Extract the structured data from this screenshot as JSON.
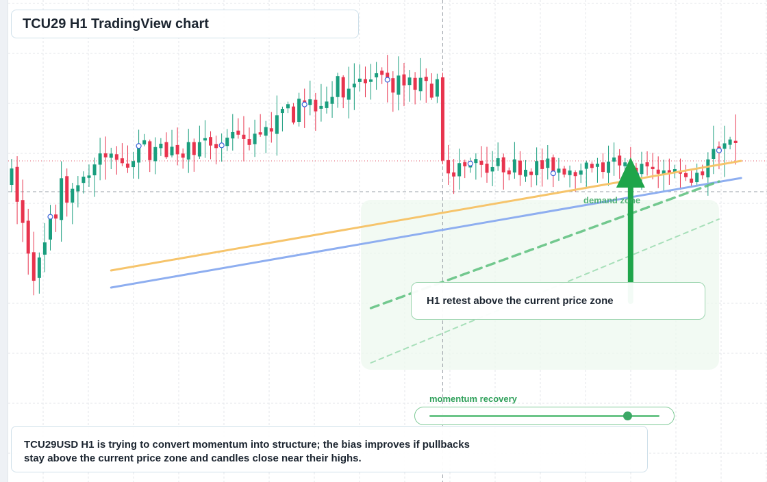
{
  "title": "TCU29 H1 TradingView chart",
  "callout": "H1 retest above the current price zone",
  "zone_label": "demand zone",
  "momentum": {
    "label": "momentum recovery",
    "level": 0.86
  },
  "summary": "TCU29USD H1 is trying to convert momentum into structure; the bias improves if pullbacks stay above the current price zone and candles close near their highs.",
  "colors": {
    "up": "#1a9e7e",
    "down": "#e8344e",
    "trend_orange": "#f6c46b",
    "trend_blue": "#8eaef0",
    "accent_green": "#1fa54a",
    "zone_fill": "#eef8ef",
    "grid": "#e3e6ea",
    "marker": "#3b63d8"
  },
  "chart_data": {
    "type": "candlestick",
    "symbol": "TCU29USD",
    "timeframe": "H1",
    "candle_count": 132,
    "price_range": [
      0,
      100
    ],
    "grid": true,
    "segments": [
      {
        "from": 0,
        "to": 5,
        "start": 55,
        "end": 30,
        "vol": 5
      },
      {
        "from": 5,
        "to": 10,
        "start": 30,
        "end": 52,
        "vol": 5
      },
      {
        "from": 10,
        "to": 18,
        "start": 52,
        "end": 62,
        "vol": 4
      },
      {
        "from": 18,
        "to": 42,
        "start": 62,
        "end": 67,
        "vol": 3
      },
      {
        "from": 42,
        "to": 62,
        "start": 67,
        "end": 84,
        "vol": 4
      },
      {
        "from": 62,
        "to": 78,
        "start": 84,
        "end": 82,
        "vol": 4
      },
      {
        "from": 78,
        "to": 126,
        "start": 60,
        "end": 58,
        "vol": 3
      },
      {
        "from": 126,
        "to": 132,
        "start": 62,
        "end": 63,
        "vol": 5
      }
    ],
    "markers_at": [
      7,
      23,
      38,
      53,
      68,
      83,
      98,
      113,
      128
    ],
    "reference_levels": [
      {
        "value": 61,
        "style": "dotted-red"
      },
      {
        "value": 52,
        "style": "dashed-gray"
      }
    ],
    "trendlines": [
      {
        "name": "",
        "style": "solid-orange",
        "from_index": 18,
        "from_value": 29,
        "to_index": 132,
        "to_value": 61
      },
      {
        "name": "",
        "style": "solid-blue",
        "from_index": 18,
        "from_value": 24,
        "to_index": 132,
        "to_value": 56
      },
      {
        "name": "",
        "style": "dashed-green",
        "from_index": 65,
        "from_value": 18,
        "to_index": 128,
        "to_value": 55
      },
      {
        "name": "",
        "style": "faint-dashed-green",
        "from_index": 65,
        "from_value": 2,
        "to_index": 128,
        "to_value": 44
      }
    ],
    "arrow": {
      "direction": "up",
      "at_index": 112,
      "from_value": 20,
      "to_value": 62
    },
    "vertical_crosshair_index": 78
  }
}
